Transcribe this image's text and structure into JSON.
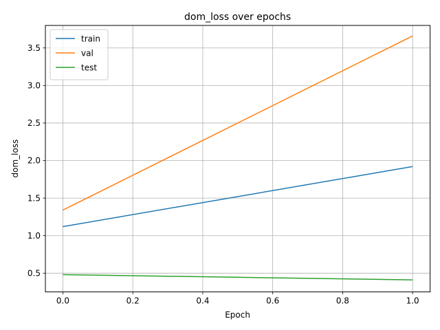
{
  "chart_data": {
    "type": "line",
    "title": "dom_loss over epochs",
    "xlabel": "Epoch",
    "ylabel": "dom_loss",
    "x": [
      0.0,
      1.0
    ],
    "xlim": [
      -0.05,
      1.05
    ],
    "ylim": [
      0.25,
      3.8
    ],
    "xticks": [
      "0.0",
      "0.2",
      "0.4",
      "0.6",
      "0.8",
      "1.0"
    ],
    "yticks": [
      "0.5",
      "1.0",
      "1.5",
      "2.0",
      "2.5",
      "3.0",
      "3.5"
    ],
    "grid": true,
    "legend_position": "upper-left",
    "series": [
      {
        "name": "train",
        "color": "#1f77b4",
        "values": [
          1.12,
          1.92
        ]
      },
      {
        "name": "val",
        "color": "#ff7f0e",
        "values": [
          1.34,
          3.66
        ]
      },
      {
        "name": "test",
        "color": "#2ca02c",
        "values": [
          0.48,
          0.41
        ]
      }
    ]
  }
}
